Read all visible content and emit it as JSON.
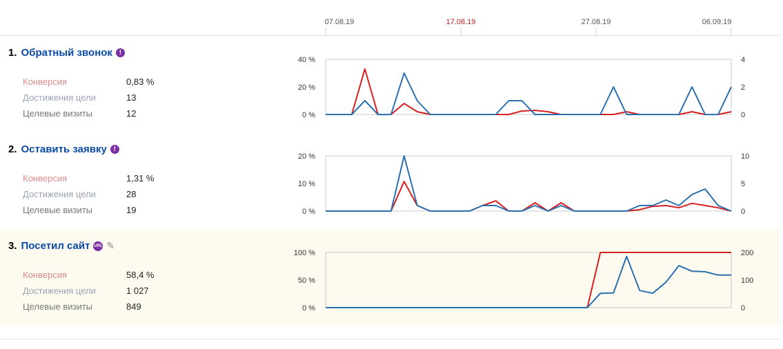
{
  "dates": [
    "07.08.19",
    "17.08.19",
    "27.08.19",
    "06.09.19"
  ],
  "colors": {
    "conversion": "#d61f1f",
    "visits": "#2a6fb0",
    "link": "#0a4aa8"
  },
  "goals": [
    {
      "number": "1.",
      "name": "Обратный звонок",
      "badge": "!",
      "metrics": {
        "conversion_label": "Конверсия",
        "conversion": "0,83 %",
        "achievements_label": "Достижения цели",
        "achievements": "13",
        "visits_label": "Целевые визиты",
        "visits": "12"
      }
    },
    {
      "number": "2.",
      "name": "Оставить заявку",
      "badge": "!",
      "metrics": {
        "conversion_label": "Конверсия",
        "conversion": "1,31 %",
        "achievements_label": "Достижения цели",
        "achievements": "28",
        "visits_label": "Целевые визиты",
        "visits": "19"
      }
    },
    {
      "number": "3.",
      "name": "Посетил сайт",
      "badge": "URL",
      "metrics": {
        "conversion_label": "Конверсия",
        "conversion": "58,4 %",
        "achievements_label": "Достижения цели",
        "achievements": "1 027",
        "visits_label": "Целевые визиты",
        "visits": "849"
      }
    }
  ],
  "chart_data": [
    {
      "type": "line",
      "left_ticks": [
        "40 %",
        "20 %",
        "0 %"
      ],
      "right_ticks": [
        "4",
        "2",
        "0"
      ],
      "left_range": [
        0,
        40
      ],
      "right_range": [
        0,
        4
      ],
      "series": [
        {
          "axis": "left",
          "color": "#d61f1f",
          "values": [
            0,
            0,
            0,
            33,
            0,
            0,
            8,
            2,
            0,
            0,
            0,
            0,
            0,
            0,
            0,
            2.5,
            3,
            2,
            0,
            0,
            0,
            0,
            0,
            2,
            0,
            0,
            0,
            0,
            2,
            0,
            0,
            2
          ]
        },
        {
          "axis": "right",
          "color": "#2a6fb0",
          "values": [
            0,
            0,
            0,
            1,
            0,
            0,
            3,
            1,
            0,
            0,
            0,
            0,
            0,
            0,
            1,
            1,
            0,
            0,
            0,
            0,
            0,
            0,
            2,
            0,
            0,
            0,
            0,
            0,
            2,
            0,
            0,
            2
          ]
        }
      ]
    },
    {
      "type": "line",
      "left_ticks": [
        "20 %",
        "10 %",
        "0 %"
      ],
      "right_ticks": [
        "10",
        "5",
        "0"
      ],
      "left_range": [
        0,
        20
      ],
      "right_range": [
        0,
        10
      ],
      "series": [
        {
          "axis": "left",
          "color": "#d61f1f",
          "values": [
            0,
            0,
            0,
            0,
            0,
            0,
            10.7,
            2,
            0,
            0,
            0,
            0,
            2,
            3.7,
            0,
            0,
            3,
            0,
            3,
            0,
            0,
            0,
            0,
            0,
            0.5,
            1.7,
            2,
            1.2,
            2.8,
            2,
            1.2,
            0
          ]
        },
        {
          "axis": "right",
          "color": "#2a6fb0",
          "values": [
            0,
            0,
            0,
            0,
            0,
            0,
            10,
            1,
            0,
            0,
            0,
            0,
            1,
            1,
            0,
            0,
            1,
            0,
            1,
            0,
            0,
            0,
            0,
            0,
            1,
            1,
            2,
            1,
            3,
            4,
            1,
            0
          ]
        }
      ]
    },
    {
      "type": "line",
      "left_ticks": [
        "100 %",
        "50 %",
        "0 %"
      ],
      "right_ticks": [
        "200",
        "100",
        "0"
      ],
      "left_range": [
        0,
        100
      ],
      "right_range": [
        0,
        200
      ],
      "series": [
        {
          "axis": "left",
          "color": "#d61f1f",
          "values": [
            0,
            0,
            0,
            0,
            0,
            0,
            0,
            0,
            0,
            0,
            0,
            0,
            0,
            0,
            0,
            0,
            0,
            0,
            0,
            0,
            0,
            100,
            100,
            100,
            100,
            100,
            100,
            100,
            100,
            100,
            100,
            100
          ]
        },
        {
          "axis": "right",
          "color": "#2a6fb0",
          "values": [
            0,
            0,
            0,
            0,
            0,
            0,
            0,
            0,
            0,
            0,
            0,
            0,
            0,
            0,
            0,
            0,
            0,
            0,
            0,
            0,
            0,
            52,
            53,
            186,
            62,
            52,
            92,
            152,
            132,
            130,
            118,
            118
          ]
        }
      ]
    }
  ]
}
